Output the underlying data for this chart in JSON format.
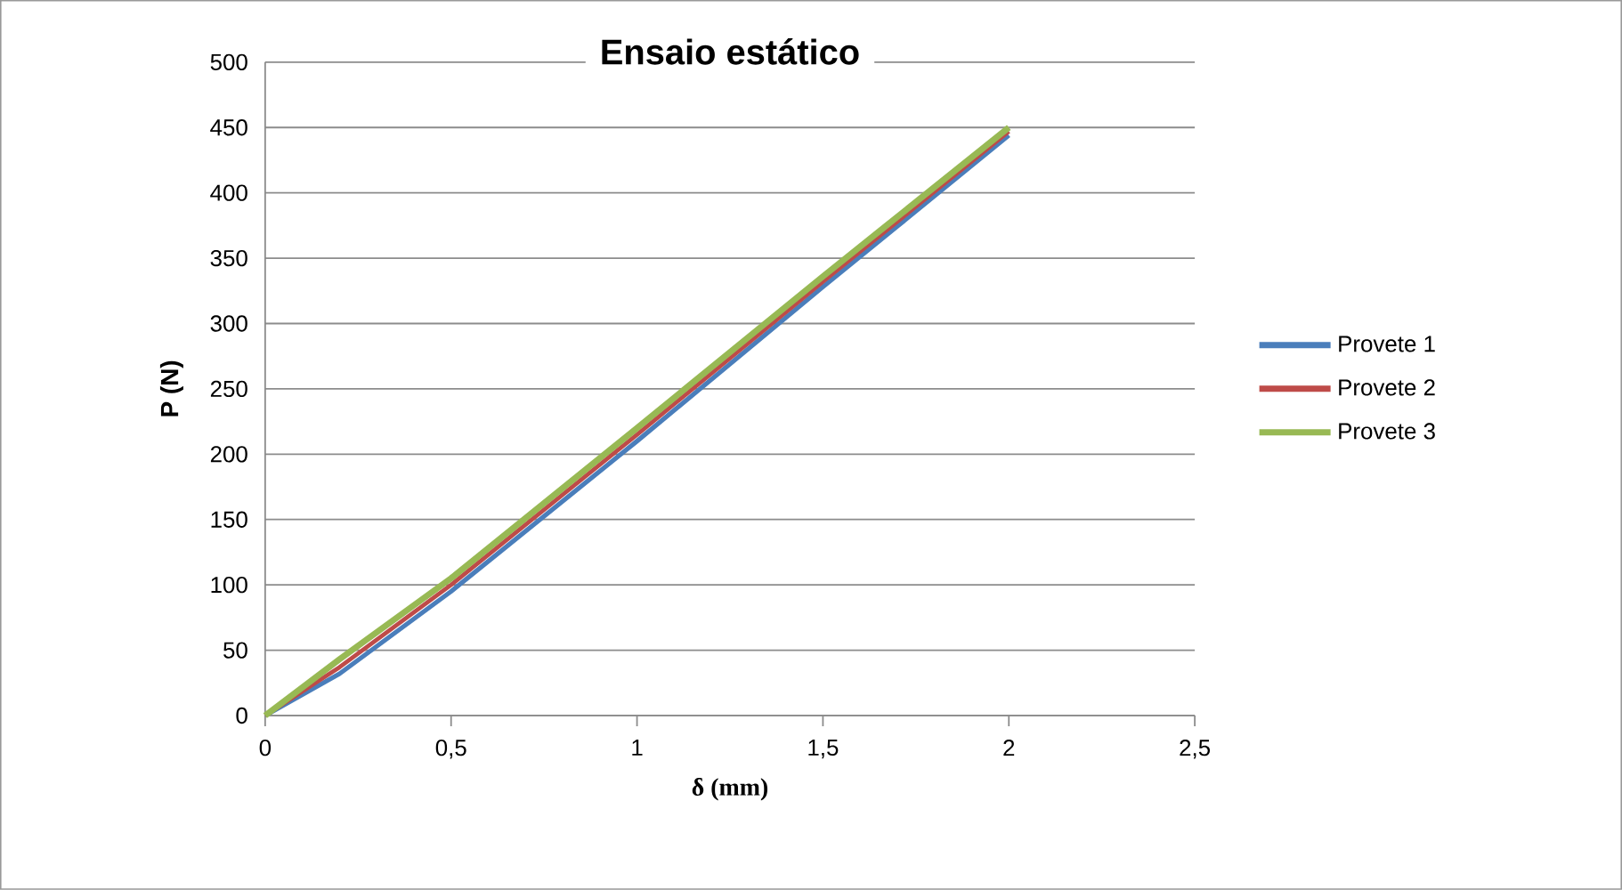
{
  "chart_data": {
    "type": "line",
    "title": "Ensaio estático",
    "xlabel": "δ (mm)",
    "ylabel": "P (N)",
    "xlim": [
      0,
      2.5
    ],
    "xticks": [
      {
        "value": 0,
        "label": "0"
      },
      {
        "value": 0.5,
        "label": "0,5"
      },
      {
        "value": 1,
        "label": "1"
      },
      {
        "value": 1.5,
        "label": "1,5"
      },
      {
        "value": 2,
        "label": "2"
      },
      {
        "value": 2.5,
        "label": "2,5"
      }
    ],
    "ylim": [
      0,
      500
    ],
    "yticks": [
      0,
      50,
      100,
      150,
      200,
      250,
      300,
      350,
      400,
      450,
      500
    ],
    "grid": "y",
    "legend": "right",
    "marker": "none",
    "line_style": "solid",
    "x": [
      0,
      0.2,
      0.5,
      1,
      1.5,
      2
    ],
    "series": [
      {
        "name": "Provete 1",
        "color": "#4a7ebb",
        "values": [
          0,
          32,
          95,
          210,
          328,
          444
        ]
      },
      {
        "name": "Provete 2",
        "color": "#be4b48",
        "values": [
          0,
          37,
          100,
          215,
          332,
          447
        ]
      },
      {
        "name": "Provete 3",
        "color": "#98b954",
        "values": [
          0,
          43,
          105,
          220,
          336,
          450
        ]
      }
    ]
  }
}
